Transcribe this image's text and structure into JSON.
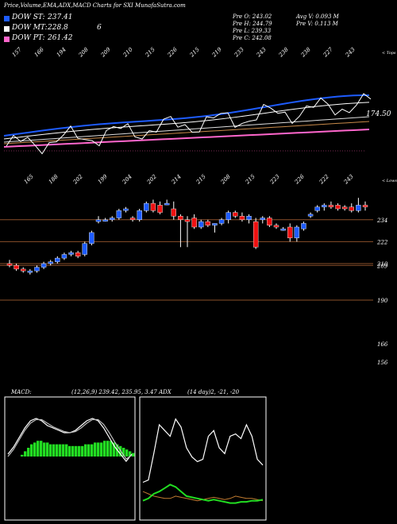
{
  "header": {
    "title": "Price,Volume,EMA,ADX,MACD Charts for SXI MunafaSutra.com"
  },
  "legend": [
    {
      "label": "DOW ST:",
      "value": "237.41",
      "color": "#1e5cff"
    },
    {
      "label": "DOW MT:",
      "value": "228.8",
      "color": "#ffffff",
      "extra": "6"
    },
    {
      "label": "DOW PT:",
      "value": "261.42",
      "color": "#ff66cc"
    }
  ],
  "stats": {
    "pre_o": "Pre  O: 243.02",
    "pre_h": "Pre  H: 244.79",
    "pre_l": "Pre  L: 239.33",
    "pre_c": "Pre  C: 242.08",
    "avg_v": "Avg V: 0.093 M",
    "pre_v": "Pre  V: 0.113 M"
  },
  "labels": {
    "upper_corner": "< Tops",
    "lower_corner": "< Lows",
    "ema_value": "174.50",
    "macd_title": "MACD:",
    "macd_values": "(12,26,9) 239.42, 235.95, 3.47 ADX",
    "adx_values": "(14  day)2, -21, -20"
  },
  "colors": {
    "up": "#1e5cff",
    "down": "#ee1111",
    "accent": "#ff66cc",
    "hline": "#8a4f2a"
  },
  "chart_data": [
    {
      "type": "line",
      "name": "EMA / Tops panel",
      "top_labels": [
        "157",
        "166",
        "194",
        "208",
        "209",
        "210",
        "215",
        "226",
        "215",
        "219",
        "233",
        "243",
        "238",
        "238",
        "227",
        "243"
      ],
      "annotations": [
        "174.50"
      ]
    },
    {
      "type": "candlestick",
      "name": "Price panel",
      "top_labels": [
        "165",
        "188",
        "202",
        "199",
        "204",
        "202",
        "214",
        "215",
        "208",
        "215",
        "223",
        "226",
        "222",
        "243"
      ],
      "yticks": [
        234,
        222,
        210,
        209,
        190,
        166,
        156
      ],
      "hlines": [
        234,
        222,
        210,
        209,
        190
      ],
      "candles": [
        {
          "o": 210,
          "h": 212,
          "l": 208,
          "c": 209
        },
        {
          "o": 209,
          "h": 210,
          "l": 206,
          "c": 207
        },
        {
          "o": 207,
          "h": 208,
          "l": 205,
          "c": 206
        },
        {
          "o": 206,
          "h": 207,
          "l": 204,
          "c": 206
        },
        {
          "o": 206,
          "h": 209,
          "l": 205,
          "c": 208
        },
        {
          "o": 208,
          "h": 211,
          "l": 207,
          "c": 210
        },
        {
          "o": 210,
          "h": 212,
          "l": 209,
          "c": 211
        },
        {
          "o": 211,
          "h": 214,
          "l": 210,
          "c": 213
        },
        {
          "o": 213,
          "h": 216,
          "l": 212,
          "c": 215
        },
        {
          "o": 215,
          "h": 217,
          "l": 214,
          "c": 216
        },
        {
          "o": 216,
          "h": 217,
          "l": 213,
          "c": 214
        },
        {
          "o": 215,
          "h": 222,
          "l": 214,
          "c": 221
        },
        {
          "o": 221,
          "h": 228,
          "l": 220,
          "c": 227
        },
        {
          "o": 233,
          "h": 236,
          "l": 232,
          "c": 234
        },
        {
          "o": 234,
          "h": 235,
          "l": 233,
          "c": 234
        },
        {
          "o": 234,
          "h": 236,
          "l": 233,
          "c": 235
        },
        {
          "o": 235,
          "h": 240,
          "l": 234,
          "c": 239
        },
        {
          "o": 239,
          "h": 241,
          "l": 238,
          "c": 240
        },
        {
          "o": 235,
          "h": 236,
          "l": 233,
          "c": 234
        },
        {
          "o": 234,
          "h": 240,
          "l": 233,
          "c": 239
        },
        {
          "o": 239,
          "h": 244,
          "l": 238,
          "c": 243
        },
        {
          "o": 243,
          "h": 245,
          "l": 238,
          "c": 239
        },
        {
          "o": 242,
          "h": 244,
          "l": 237,
          "c": 238
        },
        {
          "o": 243,
          "h": 245,
          "l": 242,
          "c": 243
        },
        {
          "o": 240,
          "h": 244,
          "l": 234,
          "c": 236
        },
        {
          "o": 236,
          "h": 237,
          "l": 219,
          "c": 234
        },
        {
          "o": 234,
          "h": 236,
          "l": 219,
          "c": 233
        },
        {
          "o": 235,
          "h": 237,
          "l": 229,
          "c": 230
        },
        {
          "o": 230,
          "h": 234,
          "l": 229,
          "c": 233
        },
        {
          "o": 233,
          "h": 234,
          "l": 230,
          "c": 231
        },
        {
          "o": 231,
          "h": 232,
          "l": 227,
          "c": 232
        },
        {
          "o": 232,
          "h": 235,
          "l": 231,
          "c": 234
        },
        {
          "o": 234,
          "h": 239,
          "l": 232,
          "c": 238
        },
        {
          "o": 238,
          "h": 239,
          "l": 235,
          "c": 236
        },
        {
          "o": 236,
          "h": 238,
          "l": 233,
          "c": 234
        },
        {
          "o": 234,
          "h": 237,
          "l": 232,
          "c": 236
        },
        {
          "o": 233,
          "h": 235,
          "l": 218,
          "c": 219
        },
        {
          "o": 234,
          "h": 236,
          "l": 232,
          "c": 235
        },
        {
          "o": 235,
          "h": 236,
          "l": 230,
          "c": 231
        },
        {
          "o": 231,
          "h": 232,
          "l": 229,
          "c": 230
        },
        {
          "o": 229,
          "h": 230,
          "l": 228,
          "c": 229
        },
        {
          "o": 230,
          "h": 232,
          "l": 222,
          "c": 224
        },
        {
          "o": 224,
          "h": 231,
          "l": 222,
          "c": 230
        },
        {
          "o": 229,
          "h": 233,
          "l": 228,
          "c": 232
        },
        {
          "o": 236,
          "h": 238,
          "l": 235,
          "c": 237
        },
        {
          "o": 239,
          "h": 242,
          "l": 238,
          "c": 241
        },
        {
          "o": 241,
          "h": 243,
          "l": 239,
          "c": 242
        },
        {
          "o": 242,
          "h": 244,
          "l": 240,
          "c": 241
        },
        {
          "o": 242,
          "h": 243,
          "l": 239,
          "c": 240
        },
        {
          "o": 241,
          "h": 242,
          "l": 239,
          "c": 240
        },
        {
          "o": 241,
          "h": 243,
          "l": 238,
          "c": 239
        },
        {
          "o": 239,
          "h": 246,
          "l": 238,
          "c": 242
        },
        {
          "o": 242,
          "h": 244,
          "l": 239,
          "c": 241
        }
      ]
    },
    {
      "type": "line",
      "name": "MACD panel",
      "series": [
        {
          "name": "MACD",
          "values": [
            2,
            8,
            16,
            24,
            30,
            32,
            30,
            26,
            24,
            22,
            20,
            20,
            22,
            26,
            30,
            32,
            30,
            24,
            16,
            8,
            2,
            -4,
            2
          ]
        },
        {
          "name": "Signal",
          "values": [
            0,
            6,
            14,
            22,
            28,
            31,
            31,
            28,
            25,
            23,
            21,
            20,
            21,
            24,
            28,
            31,
            31,
            27,
            20,
            12,
            5,
            -2,
            1
          ]
        }
      ],
      "histogram": [
        1,
        3,
        5,
        7,
        8,
        9,
        9,
        8,
        8,
        7,
        7,
        7,
        7,
        7,
        7,
        6,
        6,
        6,
        6,
        6,
        7,
        7,
        7,
        8,
        8,
        8,
        9,
        9,
        9,
        8,
        7,
        6,
        5,
        4,
        3,
        2
      ]
    },
    {
      "type": "line",
      "name": "ADX panel",
      "series": [
        {
          "name": "DI+",
          "values": [
            30,
            32,
            55,
            80,
            75,
            70,
            85,
            78,
            60,
            52,
            48,
            50,
            70,
            75,
            60,
            55,
            70,
            72,
            68,
            80,
            70,
            50,
            45
          ]
        },
        {
          "name": "DI-",
          "values": [
            22,
            20,
            18,
            17,
            16,
            16,
            18,
            17,
            16,
            15,
            14,
            15,
            16,
            17,
            16,
            15,
            16,
            18,
            17,
            16,
            16,
            15,
            14
          ]
        },
        {
          "name": "ADX",
          "values": [
            14,
            16,
            20,
            22,
            25,
            28,
            26,
            22,
            18,
            17,
            16,
            15,
            14,
            15,
            14,
            13,
            12,
            12,
            13,
            13,
            14,
            14,
            15
          ]
        }
      ]
    }
  ]
}
